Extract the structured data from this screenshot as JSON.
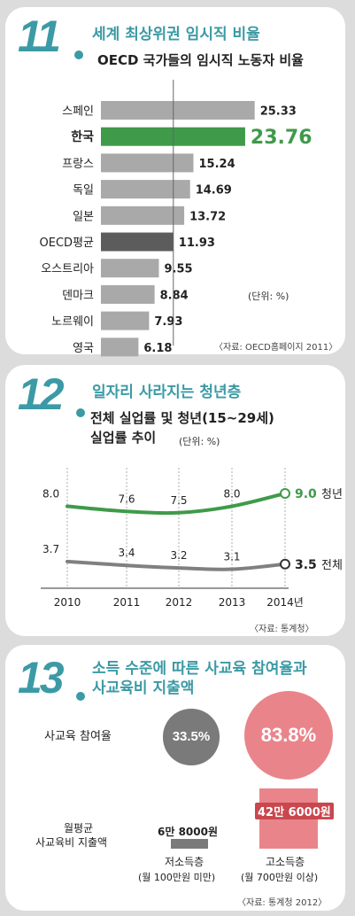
{
  "section11": {
    "number": "11",
    "title": "세계 최상위권 임시직 비율",
    "subtitle": "OECD 국가들의 임시직 노동자 비율",
    "unit": "(단위: %)",
    "source": "〈자료: OECD홈페이지 2011〉",
    "colors": {
      "default": "#a9a9a9",
      "highlight": "#3f9a4a",
      "oecd": "#5c5c5c"
    }
  },
  "section12": {
    "number": "12",
    "title": "일자리 사라지는 청년층",
    "subtitle_line1": "전체 실업률 및 청년(15~29세)",
    "subtitle_line2": "실업률 추이",
    "unit": "(단위: %)",
    "source": "〈자료: 통계청〉",
    "colors": {
      "youth": "#3f9a4a",
      "total": "#808080"
    }
  },
  "section13": {
    "number": "13",
    "title_line1": "소득 수준에 따른 사교육 참여율과",
    "title_line2": "사교육비 지출액",
    "row1_label": "사교육 참여율",
    "row2_label_line1": "월평균",
    "row2_label_line2": "사교육비 지출액",
    "low": {
      "rate": "33.5%",
      "rate_value": 33.5,
      "spend": "6만 8000원",
      "spend_value": 68000,
      "label": "저소득층",
      "sublabel": "(월 100만원 미만)"
    },
    "high": {
      "rate": "83.8%",
      "rate_value": 83.8,
      "spend": "42만 6000원",
      "spend_value": 426000,
      "label": "고소득층",
      "sublabel": "(월 700만원 이상)"
    },
    "source": "〈자료: 통계청 2012〉",
    "colors": {
      "low": "#7a7a7a",
      "high": "#e9858a",
      "highlight_text": "#ffffff"
    }
  },
  "chart_data": [
    {
      "type": "bar",
      "orientation": "horizontal",
      "title": "OECD 국가들의 임시직 노동자 비율",
      "categories": [
        "스페인",
        "한국",
        "프랑스",
        "독일",
        "일본",
        "OECD평균",
        "오스트리아",
        "덴마크",
        "노르웨이",
        "영국"
      ],
      "values": [
        25.33,
        23.76,
        15.24,
        14.69,
        13.72,
        11.93,
        9.55,
        8.84,
        7.93,
        6.18
      ],
      "value_labels": [
        "25.33",
        "23.76",
        "15.24",
        "14.69",
        "13.72",
        "11.93",
        "9.55",
        "8.84",
        "7.93",
        "6.18"
      ],
      "highlight": "한국",
      "xlim": [
        0,
        28
      ],
      "reference_line": 11.93
    },
    {
      "type": "line",
      "title": "전체 실업률 및 청년(15~29세) 실업률 추이",
      "x": [
        "2010",
        "2011",
        "2012",
        "2013",
        "2014년"
      ],
      "series": [
        {
          "name": "청년",
          "values": [
            8.0,
            7.6,
            7.5,
            8.0,
            9.0
          ],
          "labels": [
            "8.0",
            "7.6",
            "7.5",
            "8.0",
            "9.0"
          ]
        },
        {
          "name": "전체",
          "values": [
            3.7,
            3.4,
            3.2,
            3.1,
            3.5
          ],
          "labels": [
            "3.7",
            "3.4",
            "3.2",
            "3.1",
            "3.5"
          ]
        }
      ],
      "grid": true
    }
  ]
}
